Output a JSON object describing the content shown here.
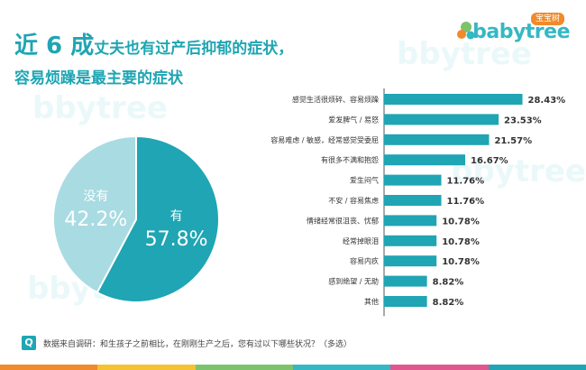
{
  "brand": {
    "badge": "宝宝树",
    "name": "babytree"
  },
  "title": {
    "big": "近 6 成",
    "rest": "丈夫也有过产后抑郁的症状，",
    "line2": "容易烦躁是最主要的症状"
  },
  "colors": {
    "accent": "#1fa5b3",
    "pie_yes": "#1fa5b3",
    "pie_no": "#a9dbe2",
    "bar": "#1fa5b3",
    "logo": "#34b8c4",
    "stripe": [
      "#f08a2b",
      "#f5c330",
      "#7cc36b",
      "#34b8c4",
      "#e2568f",
      "#1fa5b3"
    ]
  },
  "chart_data": [
    {
      "type": "pie",
      "slices": [
        {
          "label": "有",
          "value": 57.8,
          "display": "57.8%"
        },
        {
          "label": "没有",
          "value": 42.2,
          "display": "42.2%"
        }
      ]
    },
    {
      "type": "bar",
      "orientation": "horizontal",
      "categories": [
        "感觉生活很烦碎、容易烦躁",
        "爱发脾气 / 易怒",
        "容易难虑 / 敏感，经常感觉受委屈",
        "有很多不满和抱怨",
        "爱生闷气",
        "不安 / 容易焦虑",
        "情绪经常很沮丧、忧郁",
        "经常掉眼泪",
        "容易内疚",
        "感到绝望 / 无助",
        "其他"
      ],
      "values": [
        28.43,
        23.53,
        21.57,
        16.67,
        11.76,
        11.76,
        10.78,
        10.78,
        10.78,
        8.82,
        8.82
      ],
      "value_labels": [
        "28.43%",
        "23.53%",
        "21.57%",
        "16.67%",
        "11.76%",
        "11.76%",
        "10.78%",
        "10.78%",
        "10.78%",
        "8.82%",
        "8.82%"
      ],
      "xlim": [
        0,
        30
      ],
      "grid": false
    }
  ],
  "footer": {
    "q_label": "Q",
    "source": "数据来自调研：和生孩子之前相比，在刚刚生产之后，您有过以下哪些状况？（多选）"
  }
}
